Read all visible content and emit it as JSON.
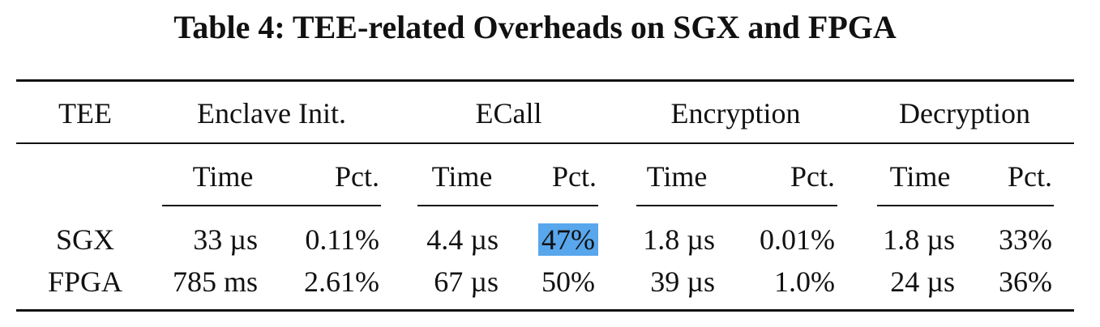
{
  "title": "Table 4: TEE-related Overheads on SGX and FPGA",
  "table": {
    "groups": [
      "TEE",
      "Enclave Init.",
      "ECall",
      "Encryption",
      "Decryption"
    ],
    "subheaders": [
      "Time",
      "Pct.",
      "Time",
      "Pct.",
      "Time",
      "Pct.",
      "Time",
      "Pct."
    ],
    "rows": [
      {
        "tee": "SGX",
        "cells": [
          "33 µs",
          "0.11%",
          "4.4 µs",
          "47%",
          "1.8 µs",
          "0.01%",
          "1.8 µs",
          "33%"
        ]
      },
      {
        "tee": "FPGA",
        "cells": [
          "785 ms",
          "2.61%",
          "67 µs",
          "50%",
          "39 µs",
          "1.0%",
          "24 µs",
          "36%"
        ]
      }
    ],
    "highlight_color": "#58a6ec"
  }
}
